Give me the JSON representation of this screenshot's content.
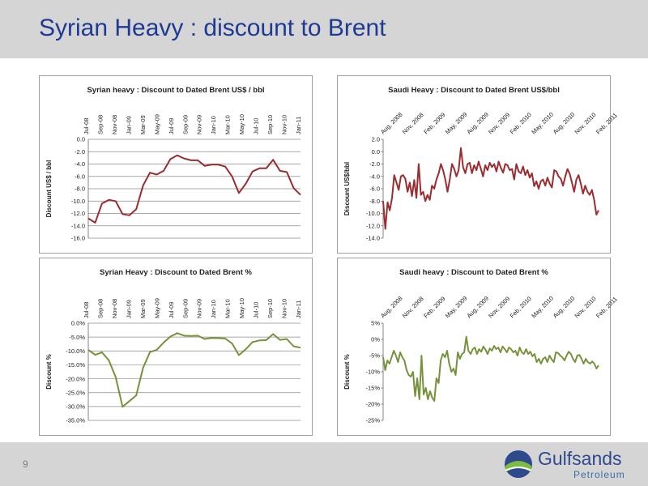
{
  "slide": {
    "title": "Syrian Heavy : discount to Brent",
    "page_number": "9",
    "logo_name": "Gulfsands",
    "logo_sub": "Petroleum",
    "accent": "#1f3a93"
  },
  "chart_data": [
    {
      "type": "line",
      "title": "Syrian heavy : Discount to Dated Brent US$ / bbl",
      "ylabel": "Discount US$ / bbl",
      "xlabel": "",
      "ylim": [
        -16,
        0
      ],
      "yticks": [
        0,
        -2,
        -4,
        -6,
        -8,
        -10,
        -12,
        -14,
        -16
      ],
      "ytick_labels": [
        "0.0",
        "-2.0",
        "-4.0",
        "-6.0",
        "-8.0",
        "-10.0",
        "-12.0",
        "-14.0",
        "-16.0"
      ],
      "grid": true,
      "color": "#9b2d30",
      "x_tick_labels": [
        "Jul-08",
        "Sep-08",
        "Nov-08",
        "Jan-09",
        "Mar-09",
        "May-09",
        "Jul-09",
        "Sep-09",
        "Nov-09",
        "Jan-10",
        "Mar-10",
        "May-10",
        "Jul-10",
        "Sep-10",
        "Nov-10",
        "Jan-11"
      ],
      "x": [
        "Jul-08",
        "Aug-08",
        "Sep-08",
        "Oct-08",
        "Nov-08",
        "Dec-08",
        "Jan-09",
        "Feb-09",
        "Mar-09",
        "Apr-09",
        "May-09",
        "Jun-09",
        "Jul-09",
        "Aug-09",
        "Sep-09",
        "Oct-09",
        "Nov-09",
        "Dec-09",
        "Jan-10",
        "Feb-10",
        "Mar-10",
        "Apr-10",
        "May-10",
        "Jun-10",
        "Jul-10",
        "Aug-10",
        "Sep-10",
        "Oct-10",
        "Nov-10",
        "Dec-10",
        "Jan-11",
        "Feb-11"
      ],
      "values": [
        -12.8,
        -13.5,
        -10.4,
        -9.8,
        -10.0,
        -12.1,
        -12.3,
        -11.3,
        -7.5,
        -5.4,
        -5.7,
        -5.1,
        -3.2,
        -2.6,
        -3.1,
        -3.4,
        -3.4,
        -4.3,
        -4.1,
        -4.1,
        -4.4,
        -6.0,
        -8.7,
        -7.2,
        -5.2,
        -4.7,
        -4.7,
        -3.3,
        -5.1,
        -5.3,
        -7.9,
        -9.0
      ]
    },
    {
      "type": "line",
      "title": "Saudi Heavy : Discount to Dated Brent US$/bbl",
      "ylabel": "Discount US$/bbl",
      "xlabel": "",
      "ylim": [
        -14,
        2
      ],
      "yticks": [
        2,
        0,
        -2,
        -4,
        -6,
        -8,
        -10,
        -12,
        -14
      ],
      "ytick_labels": [
        "2.0",
        "0.0",
        "-2.0",
        "-4.0",
        "-6.0",
        "-8.0",
        "-10.0",
        "-12.0",
        "-14.0"
      ],
      "grid": false,
      "color": "#9b2d30",
      "x_tick_labels": [
        "Aug, 2008",
        "Nov, 2008",
        "Feb, 2009",
        "May, 2009",
        "Aug, 2009",
        "Nov, 2009",
        "Feb, 2010",
        "May, 2010",
        "Aug, 2010",
        "Nov, 2010",
        "Feb, 2011"
      ],
      "values": [
        -8.0,
        -12.5,
        -8.2,
        -9.5,
        -7.5,
        -3.8,
        -5.0,
        -6.2,
        -4.0,
        -3.8,
        -4.4,
        -6.5,
        -5.0,
        -7.2,
        -4.6,
        -7.5,
        -2.0,
        -7.0,
        -6.5,
        -8.0,
        -7.0,
        -7.8,
        -5.5,
        -6.0,
        -4.5,
        -3.5,
        -2.0,
        -3.0,
        -4.5,
        -6.5,
        -4.5,
        -2.0,
        -2.8,
        -4.0,
        -3.0,
        0.6,
        -2.5,
        -3.5,
        -2.0,
        -1.8,
        -3.5,
        -2.2,
        -3.0,
        -1.6,
        -2.8,
        -4.0,
        -2.2,
        -3.0,
        -1.8,
        -2.5,
        -2.0,
        -3.2,
        -1.6,
        -2.6,
        -3.4,
        -2.0,
        -2.2,
        -3.0,
        -2.8,
        -4.5,
        -2.0,
        -3.2,
        -3.5,
        -2.4,
        -3.8,
        -3.0,
        -4.2,
        -3.5,
        -5.6,
        -4.8,
        -6.0,
        -4.8,
        -4.5,
        -5.5,
        -4.2,
        -5.2,
        -5.8,
        -3.0,
        -3.2,
        -4.0,
        -4.4,
        -5.5,
        -4.0,
        -2.8,
        -3.6,
        -5.0,
        -6.5,
        -4.5,
        -3.8,
        -5.2,
        -6.8,
        -5.5,
        -6.5,
        -7.0,
        -6.2,
        -7.8,
        -10.2,
        -9.5
      ]
    },
    {
      "type": "line",
      "title": "Syrian Heavy : Discount to Dated Brent %",
      "ylabel": "Discount %",
      "xlabel": "",
      "ylim": [
        -35,
        0
      ],
      "yticks": [
        0,
        -5,
        -10,
        -15,
        -20,
        -25,
        -30,
        -35
      ],
      "ytick_labels": [
        "0.0%",
        "-5.0%",
        "-10.0%",
        "-15.0%",
        "-20.0%",
        "-25.0%",
        "-30.0%",
        "-35.0%"
      ],
      "grid": true,
      "color": "#76923c",
      "x_tick_labels": [
        "Jul-08",
        "Sep-08",
        "Nov-08",
        "Jan-09",
        "Mar-09",
        "May-09",
        "Jul-09",
        "Sep-09",
        "Nov-09",
        "Jan-10",
        "Mar-10",
        "May-10",
        "Jul-10",
        "Sep-10",
        "Nov-10",
        "Jan-11"
      ],
      "x": [
        "Jul-08",
        "Aug-08",
        "Sep-08",
        "Oct-08",
        "Nov-08",
        "Dec-08",
        "Jan-09",
        "Feb-09",
        "Mar-09",
        "Apr-09",
        "May-09",
        "Jun-09",
        "Jul-09",
        "Aug-09",
        "Sep-09",
        "Oct-09",
        "Nov-09",
        "Dec-09",
        "Jan-10",
        "Feb-10",
        "Mar-10",
        "Apr-10",
        "May-10",
        "Jun-10",
        "Jul-10",
        "Aug-10",
        "Sep-10",
        "Oct-10",
        "Nov-10",
        "Dec-10",
        "Jan-11",
        "Feb-11"
      ],
      "values": [
        -9.6,
        -11.4,
        -10.5,
        -13.4,
        -19.4,
        -30.1,
        -28.1,
        -26.0,
        -16.1,
        -10.4,
        -9.6,
        -7.0,
        -4.8,
        -3.6,
        -4.5,
        -4.6,
        -4.5,
        -5.7,
        -5.3,
        -5.4,
        -5.5,
        -7.3,
        -11.5,
        -9.4,
        -6.8,
        -6.2,
        -6.1,
        -3.9,
        -6.0,
        -5.7,
        -8.3,
        -8.8
      ]
    },
    {
      "type": "line",
      "title": "Saudi heavy : Discount to Dated Brent %",
      "ylabel": "Discount %",
      "xlabel": "",
      "ylim": [
        -25,
        5
      ],
      "yticks": [
        5,
        0,
        -5,
        -10,
        -15,
        -20,
        -25
      ],
      "ytick_labels": [
        "5%",
        "0%",
        "-5%",
        "-10%",
        "-15%",
        "-20%",
        "-25%"
      ],
      "grid": false,
      "color": "#76923c",
      "x_tick_labels": [
        "Aug, 2008",
        "Nov, 2008",
        "Feb, 2009",
        "May, 2009",
        "Aug, 2009",
        "Nov, 2009",
        "Feb, 2010",
        "May, 2010",
        "Aug, 2010",
        "Nov, 2010",
        "Feb, 2011"
      ],
      "values": [
        -5.5,
        -9.5,
        -6.5,
        -7.5,
        -5.5,
        -3.5,
        -5.0,
        -7.0,
        -4.0,
        -5.5,
        -6.5,
        -9.5,
        -11.0,
        -11.5,
        -10.0,
        -17.5,
        -12.0,
        -18.5,
        -5.0,
        -17.0,
        -15.0,
        -18.5,
        -16.0,
        -18.0,
        -19.0,
        -12.0,
        -13.5,
        -6.5,
        -4.5,
        -5.5,
        -3.5,
        -7.5,
        -10.0,
        -9.0,
        -11.0,
        -4.0,
        -6.0,
        -4.5,
        -4.0,
        0.8,
        -3.5,
        -4.5,
        -3.0,
        -2.5,
        -4.5,
        -3.0,
        -3.8,
        -2.2,
        -3.2,
        -4.5,
        -2.8,
        -3.5,
        -2.0,
        -3.0,
        -2.5,
        -4.0,
        -2.2,
        -3.0,
        -4.0,
        -2.5,
        -3.0,
        -4.0,
        -3.5,
        -5.0,
        -2.5,
        -4.0,
        -4.5,
        -3.0,
        -4.5,
        -3.8,
        -5.2,
        -4.5,
        -7.0,
        -6.0,
        -7.5,
        -6.0,
        -5.5,
        -7.0,
        -5.0,
        -6.2,
        -7.0,
        -4.0,
        -4.2,
        -5.0,
        -5.5,
        -6.5,
        -5.0,
        -3.8,
        -4.5,
        -6.0,
        -7.0,
        -5.0,
        -4.8,
        -6.0,
        -7.5,
        -6.0,
        -7.0,
        -7.5,
        -6.8,
        -7.5,
        -9.0,
        -8.0
      ]
    }
  ]
}
